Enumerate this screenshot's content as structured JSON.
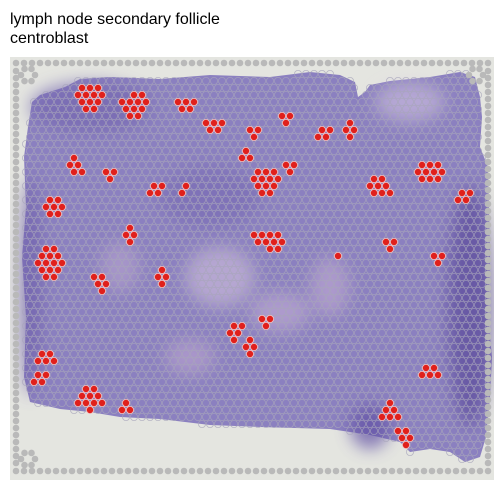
{
  "title": {
    "line1": "lymph node secondary follicle",
    "line2": "centroblast"
  },
  "colors": {
    "background": "#e4e5e0",
    "tissue": "#8a7fbf",
    "tissue_dark": "#5d4f9e",
    "spot_outline": "#9a9aa8",
    "highlight": "#e0201c",
    "fiducial": "#b9b9b9"
  }
}
